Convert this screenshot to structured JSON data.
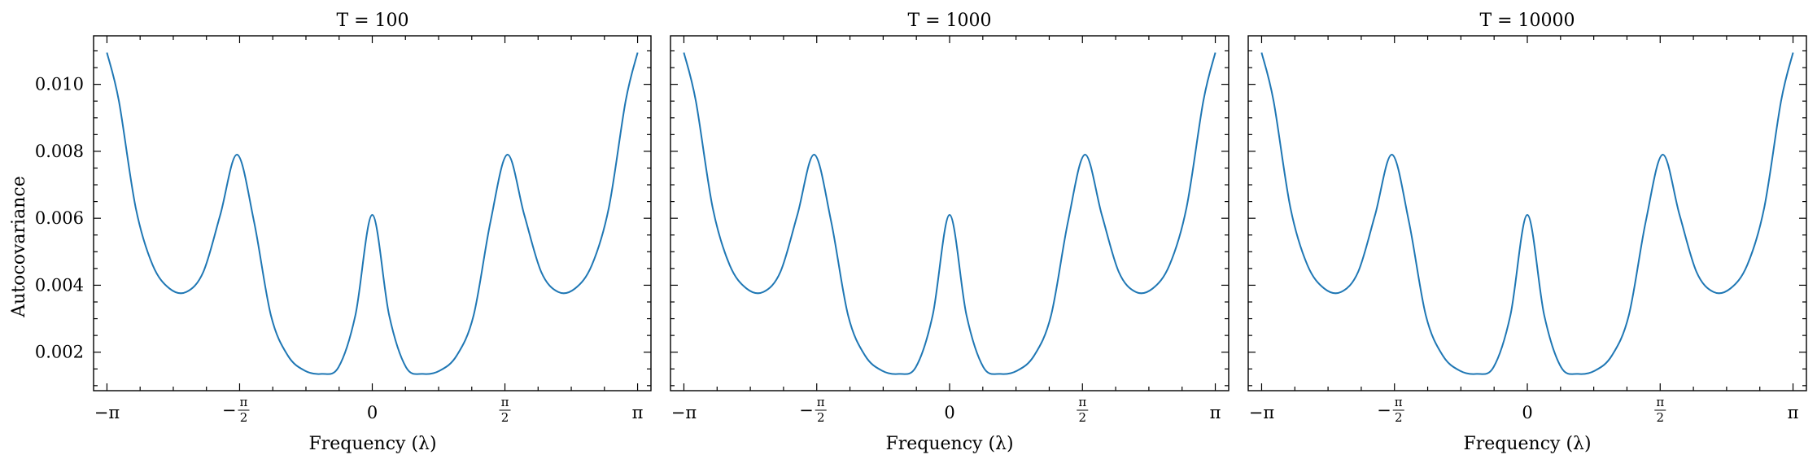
{
  "figure": {
    "ylabel": "Autocovariance",
    "line_color": "#1f77b4"
  },
  "chart_data": [
    {
      "type": "line",
      "title": "T = 100",
      "xlabel": "Frequency (λ)",
      "ylabel": "Autocovariance",
      "xlim": [
        -3.3,
        3.3
      ],
      "ylim": [
        0.00085,
        0.01145
      ],
      "xticks": [
        {
          "value": -3.14159,
          "label": "−π"
        },
        {
          "value": -1.5708,
          "label": "−π/2"
        },
        {
          "value": 0,
          "label": "0"
        },
        {
          "value": 1.5708,
          "label": "π/2"
        },
        {
          "value": 3.14159,
          "label": "π"
        }
      ],
      "yticks": [
        "0.002",
        "0.004",
        "0.006",
        "0.008",
        "0.010"
      ],
      "grid": false,
      "series": [
        {
          "x": [
            -3.142,
            -3.0,
            -2.8,
            -2.6,
            -2.4,
            -2.2,
            -2.0,
            -1.8,
            -1.6,
            -1.4,
            -1.2,
            -1.0,
            -0.8,
            -0.6,
            -0.4,
            -0.2,
            0,
            0.2,
            0.4,
            0.6,
            0.8,
            1.0,
            1.2,
            1.4,
            1.6,
            1.8,
            2.0,
            2.2,
            2.4,
            2.6,
            2.8,
            3.0,
            3.142
          ],
          "y": [
            0.01095,
            0.0095,
            0.0063,
            0.0046,
            0.0039,
            0.0038,
            0.0044,
            0.0061,
            0.0079,
            0.0059,
            0.0031,
            0.0019,
            0.00145,
            0.00135,
            0.00155,
            0.0031,
            0.0061,
            0.0031,
            0.00155,
            0.00135,
            0.00145,
            0.0019,
            0.0031,
            0.0059,
            0.0079,
            0.0061,
            0.0044,
            0.0038,
            0.0039,
            0.0046,
            0.0063,
            0.0095,
            0.01095
          ]
        }
      ]
    },
    {
      "type": "line",
      "title": "T = 1000",
      "xlabel": "Frequency (λ)",
      "xlim": [
        -3.3,
        3.3
      ],
      "ylim": [
        0.00085,
        0.01145
      ],
      "xticks": [
        {
          "value": -3.14159,
          "label": "−π"
        },
        {
          "value": -1.5708,
          "label": "−π/2"
        },
        {
          "value": 0,
          "label": "0"
        },
        {
          "value": 1.5708,
          "label": "π/2"
        },
        {
          "value": 3.14159,
          "label": "π"
        }
      ],
      "grid": false,
      "series": [
        {
          "x": [
            -3.142,
            -3.0,
            -2.8,
            -2.6,
            -2.4,
            -2.2,
            -2.0,
            -1.8,
            -1.6,
            -1.4,
            -1.2,
            -1.0,
            -0.8,
            -0.6,
            -0.4,
            -0.2,
            0,
            0.2,
            0.4,
            0.6,
            0.8,
            1.0,
            1.2,
            1.4,
            1.6,
            1.8,
            2.0,
            2.2,
            2.4,
            2.6,
            2.8,
            3.0,
            3.142
          ],
          "y": [
            0.01095,
            0.0095,
            0.0063,
            0.0046,
            0.0039,
            0.0038,
            0.0044,
            0.0061,
            0.0079,
            0.0059,
            0.0031,
            0.0019,
            0.00145,
            0.00135,
            0.00155,
            0.0031,
            0.0061,
            0.0031,
            0.00155,
            0.00135,
            0.00145,
            0.0019,
            0.0031,
            0.0059,
            0.0079,
            0.0061,
            0.0044,
            0.0038,
            0.0039,
            0.0046,
            0.0063,
            0.0095,
            0.01095
          ]
        }
      ]
    },
    {
      "type": "line",
      "title": "T = 10000",
      "xlabel": "Frequency (λ)",
      "xlim": [
        -3.3,
        3.3
      ],
      "ylim": [
        0.00085,
        0.01145
      ],
      "xticks": [
        {
          "value": -3.14159,
          "label": "−π"
        },
        {
          "value": -1.5708,
          "label": "−π/2"
        },
        {
          "value": 0,
          "label": "0"
        },
        {
          "value": 1.5708,
          "label": "π/2"
        },
        {
          "value": 3.14159,
          "label": "π"
        }
      ],
      "grid": false,
      "series": [
        {
          "x": [
            -3.142,
            -3.0,
            -2.8,
            -2.6,
            -2.4,
            -2.2,
            -2.0,
            -1.8,
            -1.6,
            -1.4,
            -1.2,
            -1.0,
            -0.8,
            -0.6,
            -0.4,
            -0.2,
            0,
            0.2,
            0.4,
            0.6,
            0.8,
            1.0,
            1.2,
            1.4,
            1.6,
            1.8,
            2.0,
            2.2,
            2.4,
            2.6,
            2.8,
            3.0,
            3.142
          ],
          "y": [
            0.01095,
            0.0095,
            0.0063,
            0.0046,
            0.0039,
            0.0038,
            0.0044,
            0.0061,
            0.0079,
            0.0059,
            0.0031,
            0.0019,
            0.00145,
            0.00135,
            0.00155,
            0.0031,
            0.0061,
            0.0031,
            0.00155,
            0.00135,
            0.00145,
            0.0019,
            0.0031,
            0.0059,
            0.0079,
            0.0061,
            0.0044,
            0.0038,
            0.0039,
            0.0046,
            0.0063,
            0.0095,
            0.01095
          ]
        }
      ]
    }
  ]
}
